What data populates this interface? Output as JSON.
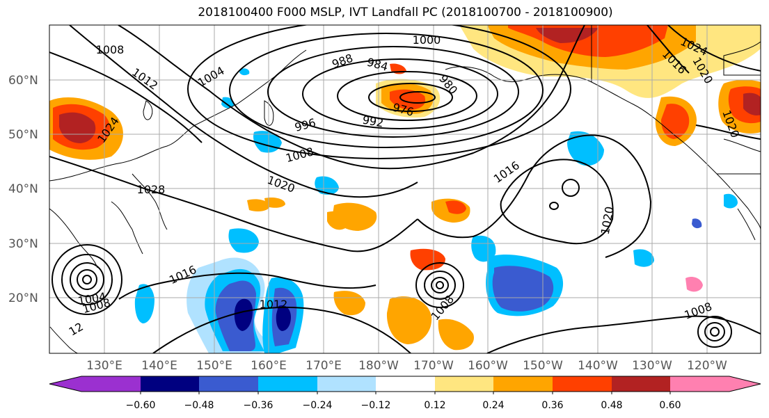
{
  "title": "2018100400 F000 MSLP, IVT Landfall PC (2018100700 - 2018100900)",
  "latitude_labels": [
    "60°N",
    "50°N",
    "40°N",
    "30°N",
    "20°N"
  ],
  "longitude_labels": [
    "130°E",
    "140°E",
    "150°E",
    "160°E",
    "170°E",
    "180°W",
    "170°W",
    "160°W",
    "150°W",
    "140°W",
    "130°W",
    "120°W"
  ],
  "colorbar": {
    "colors": [
      "#9b30d0",
      "#000080",
      "#3a5bd0",
      "#00bfff",
      "#b0e2ff",
      "#ffffff",
      "#ffe680",
      "#ffa500",
      "#ff4000",
      "#b22222",
      "#ff80b0"
    ],
    "tick_labels": [
      "−0.60",
      "−0.48",
      "−0.36",
      "−0.24",
      "−0.12",
      "0.12",
      "0.24",
      "0.36",
      "0.48",
      "0.60"
    ]
  },
  "isobar_labels": [
    "1000",
    "1008",
    "1012",
    "1004",
    "988",
    "984",
    "980",
    "976",
    "996",
    "992",
    "1024",
    "1008",
    "1016",
    "1028",
    "1020",
    "1020",
    "1016",
    "1012",
    "1004",
    "1008",
    "12",
    "1008",
    "1008",
    "1024",
    "1016",
    "1020",
    "1020"
  ]
}
